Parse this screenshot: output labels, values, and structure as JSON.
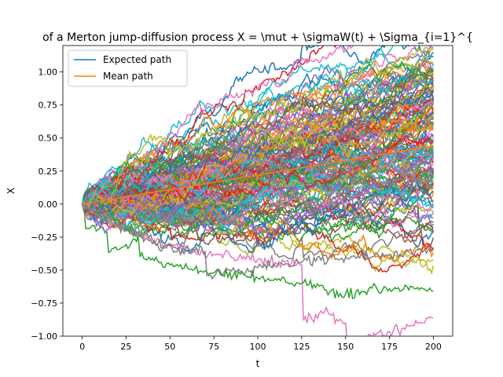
{
  "chart_data": {
    "type": "line",
    "title": "of a Merton jump-diffusion process X = \\mut + \\sigmaW(t) + \\Sigma_{i=1}^{",
    "xlabel": "t",
    "ylabel": "X",
    "xlim": [
      -11,
      211
    ],
    "ylim": [
      -1.0,
      1.2
    ],
    "xticks": [
      0,
      25,
      50,
      75,
      100,
      125,
      150,
      175,
      200
    ],
    "xtick_labels": [
      "0",
      "25",
      "50",
      "75",
      "100",
      "125",
      "150",
      "175",
      "200"
    ],
    "yticks": [
      -1.0,
      -0.75,
      -0.5,
      -0.25,
      0.0,
      0.25,
      0.5,
      0.75,
      1.0
    ],
    "ytick_labels": [
      "−1.00",
      "−0.75",
      "−0.50",
      "−0.25",
      "0.00",
      "0.25",
      "0.50",
      "0.75",
      "1.00"
    ],
    "grid": false,
    "legend_position": "top-left",
    "legend": [
      {
        "label": "Expected path",
        "color": "#1f77b4"
      },
      {
        "label": "Mean path",
        "color": "#ff7f0e"
      }
    ],
    "n_steps": 200,
    "n_sample_paths": 150,
    "sample_palette": [
      "#1f77b4",
      "#ff7f0e",
      "#2ca02c",
      "#d62728",
      "#9467bd",
      "#8c564b",
      "#e377c2",
      "#7f7f7f",
      "#bcbd22",
      "#17becf"
    ],
    "expected_path": {
      "name": "Expected path",
      "x": [
        0,
        200
      ],
      "y": [
        0.0,
        0.44
      ]
    },
    "mean_path": {
      "name": "Mean path",
      "x": [
        0,
        200
      ],
      "y": [
        0.0,
        0.44
      ]
    },
    "highlighted_paths": [
      {
        "color": "#e377c2",
        "points": [
          [
            0,
            0.0
          ],
          [
            25,
            -0.2
          ],
          [
            50,
            -0.32
          ],
          [
            75,
            -0.38
          ],
          [
            100,
            -0.42
          ],
          [
            125,
            -0.46
          ],
          [
            126,
            -0.88
          ],
          [
            140,
            -0.82
          ],
          [
            150,
            -0.9
          ],
          [
            151,
            -1.06
          ],
          [
            200,
            -0.86
          ]
        ]
      },
      {
        "color": "#2ca02c",
        "points": [
          [
            0,
            0.0
          ],
          [
            20,
            -0.12
          ],
          [
            32,
            -0.26
          ],
          [
            33,
            -0.4
          ],
          [
            50,
            -0.46
          ],
          [
            75,
            -0.52
          ],
          [
            100,
            -0.56
          ],
          [
            125,
            -0.6
          ],
          [
            150,
            -0.68
          ],
          [
            175,
            -0.64
          ],
          [
            200,
            -0.66
          ]
        ]
      },
      {
        "color": "#7f7f7f",
        "points": [
          [
            0,
            0.0
          ],
          [
            20,
            -0.16
          ],
          [
            40,
            -0.3
          ],
          [
            70,
            -0.36
          ],
          [
            71,
            -0.54
          ],
          [
            100,
            -0.48
          ],
          [
            125,
            -0.44
          ],
          [
            150,
            -0.4
          ],
          [
            175,
            -0.38
          ],
          [
            200,
            -0.34
          ]
        ]
      }
    ]
  }
}
